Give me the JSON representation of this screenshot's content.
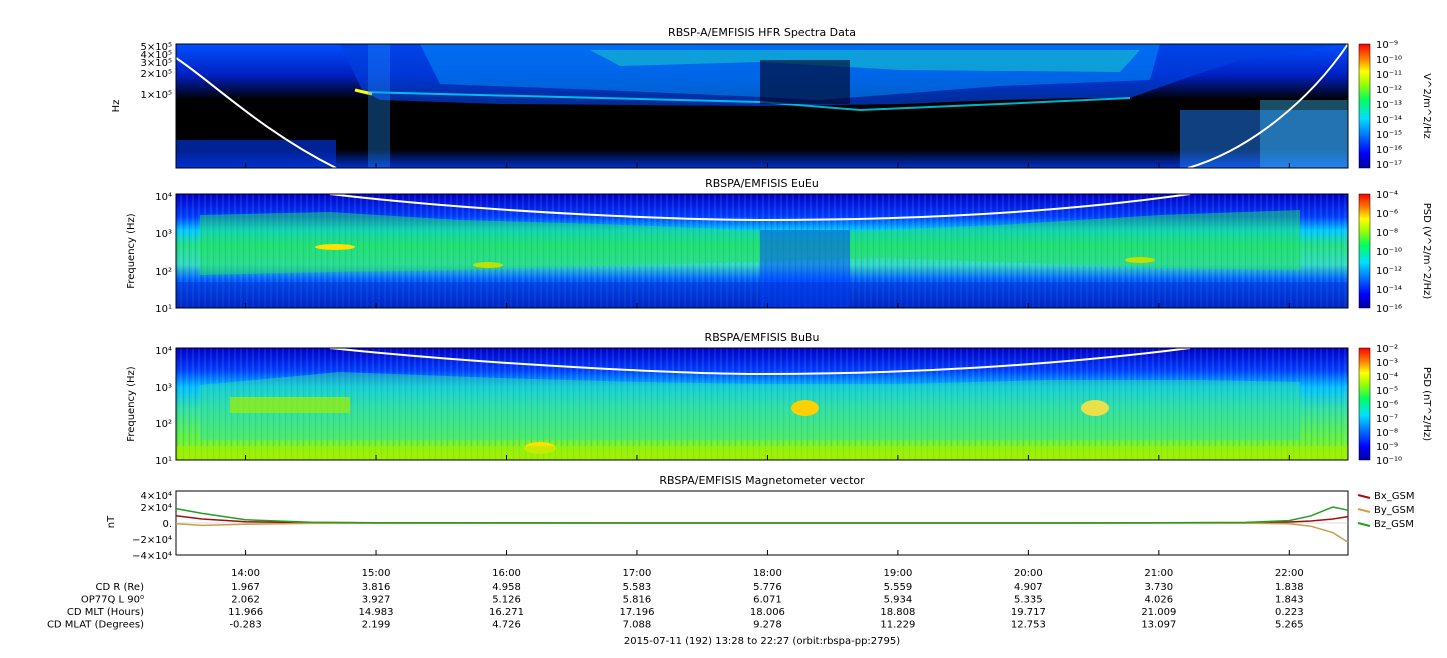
{
  "panels": [
    {
      "id": "hfr",
      "type": "heatmap",
      "title": "RBSP-A/EMFISIS  HFR Spectra Data",
      "ylabel": "Hz",
      "ylim": [
        10000,
        500000
      ],
      "yscale": "log",
      "ytick_labels": [
        "5×10⁵",
        "4×10⁵",
        "3×10⁵",
        "2×10⁵",
        "1×10⁵"
      ],
      "colorbar": {
        "label": "V^2/m^2/Hz",
        "ticks": [
          "10⁻⁹",
          "10⁻¹⁰",
          "10⁻¹¹",
          "10⁻¹²",
          "10⁻¹³",
          "10⁻¹⁴",
          "10⁻¹⁵",
          "10⁻¹⁶",
          "10⁻¹⁷"
        ]
      }
    },
    {
      "id": "eueu",
      "type": "heatmap",
      "title": "RBSPA/EMFISIS  EuEu",
      "ylabel": "Frequency (Hz)",
      "ylim": [
        10,
        10000
      ],
      "yscale": "log",
      "ytick_labels": [
        "10⁴",
        "10³",
        "10²",
        "10¹"
      ],
      "colorbar": {
        "label": "PSD (V^2/m^2/Hz)",
        "ticks": [
          "10⁻⁴",
          "10⁻⁶",
          "10⁻⁸",
          "10⁻¹⁰",
          "10⁻¹²",
          "10⁻¹⁴",
          "10⁻¹⁶"
        ]
      }
    },
    {
      "id": "bubu",
      "type": "heatmap",
      "title": "RBSPA/EMFISIS  BuBu",
      "ylabel": "Frequency (Hz)",
      "ylim": [
        10,
        10000
      ],
      "yscale": "log",
      "ytick_labels": [
        "10⁴",
        "10³",
        "10²",
        "10¹"
      ],
      "colorbar": {
        "label": "PSD (nT^2/Hz)",
        "ticks": [
          "10⁻²",
          "10⁻³",
          "10⁻⁴",
          "10⁻⁵",
          "10⁻⁶",
          "10⁻⁷",
          "10⁻⁸",
          "10⁻⁹",
          "10⁻¹⁰"
        ]
      }
    },
    {
      "id": "mag",
      "type": "line",
      "title": "RBSPA/EMFISIS  Magnetometer vector",
      "ylabel": "nT",
      "ylim": [
        -40000,
        40000
      ],
      "ytick_labels": [
        "4×10⁴",
        "2×10⁴",
        "0.",
        "−2×10⁴",
        "−4×10⁴"
      ]
    }
  ],
  "chart_data": {
    "type": "line",
    "title": "RBSPA/EMFISIS  Magnetometer vector",
    "ylabel": "nT",
    "xlabel": "2015-07-11 (192) 13:28 to 22:27 (orbit:rbspa-pp:2795)",
    "xlim": [
      "13:28",
      "22:27"
    ],
    "ylim": [
      -40000,
      40000
    ],
    "x": [
      "13:28",
      "13:40",
      "14:00",
      "14:30",
      "15:00",
      "16:00",
      "17:00",
      "18:00",
      "19:00",
      "20:00",
      "21:00",
      "21:40",
      "22:00",
      "22:10",
      "22:20",
      "22:27"
    ],
    "series": [
      {
        "name": "Bx_GSM",
        "color": "#a01010",
        "values": [
          9000,
          5000,
          1500,
          500,
          200,
          100,
          50,
          0,
          0,
          0,
          100,
          400,
          1200,
          2500,
          5000,
          8000
        ]
      },
      {
        "name": "By_GSM",
        "color": "#c8a050",
        "values": [
          -1000,
          -3000,
          -1500,
          -500,
          -200,
          -100,
          0,
          0,
          0,
          0,
          0,
          -200,
          -1000,
          -4000,
          -12000,
          -24000
        ]
      },
      {
        "name": "Bz_GSM",
        "color": "#20a020",
        "values": [
          18000,
          12000,
          4000,
          1000,
          300,
          100,
          50,
          0,
          0,
          0,
          200,
          800,
          3000,
          9000,
          20000,
          16000
        ]
      }
    ]
  },
  "time_axis": {
    "ticks": [
      "14:00",
      "15:00",
      "16:00",
      "17:00",
      "18:00",
      "19:00",
      "20:00",
      "21:00",
      "22:00"
    ]
  },
  "ephemeris": {
    "rows": [
      {
        "label": "CD R (Re)",
        "values": [
          "1.967",
          "3.816",
          "4.958",
          "5.583",
          "5.776",
          "5.559",
          "4.907",
          "3.730",
          "1.838"
        ]
      },
      {
        "label": "OP77Q L 90⁰",
        "values": [
          "2.062",
          "3.927",
          "5.126",
          "5.816",
          "6.071",
          "5.934",
          "5.335",
          "4.026",
          "1.843"
        ]
      },
      {
        "label": "CD MLT (Hours)",
        "values": [
          "11.966",
          "14.983",
          "16.271",
          "17.196",
          "18.006",
          "18.808",
          "19.717",
          "21.009",
          "0.223"
        ]
      },
      {
        "label": "CD MLAT (Degrees)",
        "values": [
          "-0.283",
          "2.199",
          "4.726",
          "7.088",
          "9.278",
          "11.229",
          "12.753",
          "13.097",
          "5.265"
        ]
      }
    ]
  },
  "footer": "2015-07-11 (192) 13:28 to 22:27 (orbit:rbspa-pp:2795)"
}
